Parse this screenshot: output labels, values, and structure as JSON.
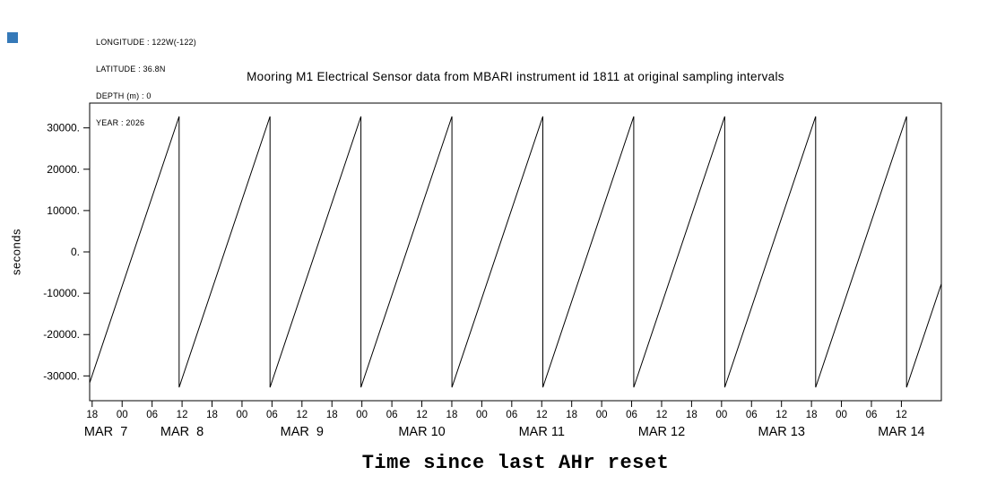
{
  "page": {
    "background": "#ffffff",
    "corner_marker_color": "#3579b8",
    "line_color": "#000000"
  },
  "header": {
    "longitude": "LONGITUDE : 122W(-122)",
    "latitude": "LATITUDE : 36.8N",
    "depth": "DEPTH (m) : 0",
    "year": "YEAR : 2026"
  },
  "chart_data": {
    "type": "line",
    "title": "Mooring M1 Electrical Sensor data from MBARI instrument id 1811 at original sampling intervals",
    "xlabel": "Time since last AHr reset",
    "ylabel": "seconds",
    "ylim": [
      -36000,
      36000
    ],
    "grid": false,
    "legend": "none",
    "y_ticks": [
      {
        "value": 30000,
        "label": "30000."
      },
      {
        "value": 20000,
        "label": "20000."
      },
      {
        "value": 10000,
        "label": "10000."
      },
      {
        "value": 0,
        "label": "0."
      },
      {
        "value": -10000,
        "label": "-10000."
      },
      {
        "value": -20000,
        "label": "-20000."
      },
      {
        "value": -30000,
        "label": "-30000."
      }
    ],
    "x_axis": {
      "start": "2026-03-07T17:30:00",
      "end": "2026-03-14T20:00:00",
      "hour_tick_interval_hours": 6,
      "hour_ticks": [
        {
          "time": "2026-03-07T18:00:00",
          "label": "18"
        },
        {
          "time": "2026-03-08T00:00:00",
          "label": "00"
        },
        {
          "time": "2026-03-08T06:00:00",
          "label": "06"
        },
        {
          "time": "2026-03-08T12:00:00",
          "label": "12"
        },
        {
          "time": "2026-03-08T18:00:00",
          "label": "18"
        },
        {
          "time": "2026-03-09T00:00:00",
          "label": "00"
        },
        {
          "time": "2026-03-09T06:00:00",
          "label": "06"
        },
        {
          "time": "2026-03-09T12:00:00",
          "label": "12"
        },
        {
          "time": "2026-03-09T18:00:00",
          "label": "18"
        },
        {
          "time": "2026-03-10T00:00:00",
          "label": "00"
        },
        {
          "time": "2026-03-10T06:00:00",
          "label": "06"
        },
        {
          "time": "2026-03-10T12:00:00",
          "label": "12"
        },
        {
          "time": "2026-03-10T18:00:00",
          "label": "18"
        },
        {
          "time": "2026-03-11T00:00:00",
          "label": "00"
        },
        {
          "time": "2026-03-11T06:00:00",
          "label": "06"
        },
        {
          "time": "2026-03-11T12:00:00",
          "label": "12"
        },
        {
          "time": "2026-03-11T18:00:00",
          "label": "18"
        },
        {
          "time": "2026-03-12T00:00:00",
          "label": "00"
        },
        {
          "time": "2026-03-12T06:00:00",
          "label": "06"
        },
        {
          "time": "2026-03-12T12:00:00",
          "label": "12"
        },
        {
          "time": "2026-03-12T18:00:00",
          "label": "18"
        },
        {
          "time": "2026-03-13T00:00:00",
          "label": "00"
        },
        {
          "time": "2026-03-13T06:00:00",
          "label": "06"
        },
        {
          "time": "2026-03-13T12:00:00",
          "label": "12"
        },
        {
          "time": "2026-03-13T18:00:00",
          "label": "18"
        },
        {
          "time": "2026-03-14T00:00:00",
          "label": "00"
        },
        {
          "time": "2026-03-14T06:00:00",
          "label": "06"
        },
        {
          "time": "2026-03-14T12:00:00",
          "label": "12"
        }
      ],
      "date_labels": [
        {
          "label": "MAR  7",
          "center": "2026-03-07T20:45:00"
        },
        {
          "label": "MAR  8",
          "center": "2026-03-08T12:00:00"
        },
        {
          "label": "MAR  9",
          "center": "2026-03-09T12:00:00"
        },
        {
          "label": "MAR 10",
          "center": "2026-03-10T12:00:00"
        },
        {
          "label": "MAR 11",
          "center": "2026-03-11T12:00:00"
        },
        {
          "label": "MAR 12",
          "center": "2026-03-12T12:00:00"
        },
        {
          "label": "MAR 13",
          "center": "2026-03-13T12:00:00"
        },
        {
          "label": "MAR 14",
          "center": "2026-03-14T12:00:00"
        }
      ]
    },
    "series": {
      "name": "time-since-last-AHr-reset",
      "shape": "sawtooth",
      "wrap_min": -32768,
      "wrap_max": 32767,
      "period_seconds": 65536,
      "slope_seconds_per_second": 1,
      "reset_times": [
        "2026-03-07T17:12:00",
        "2026-03-08T11:24:16",
        "2026-03-09T05:36:32",
        "2026-03-09T23:48:48",
        "2026-03-10T18:01:04",
        "2026-03-11T12:13:20",
        "2026-03-12T06:25:36",
        "2026-03-13T00:37:52",
        "2026-03-13T18:50:08",
        "2026-03-14T13:02:24"
      ],
      "value_at_axis_start": -31688,
      "value_at_axis_end": -7712
    }
  }
}
